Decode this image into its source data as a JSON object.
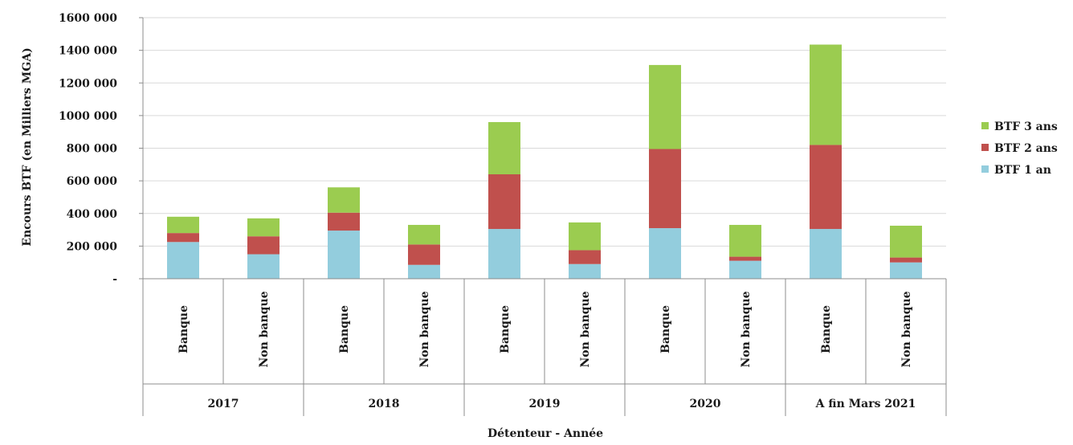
{
  "chart_data": {
    "type": "bar",
    "stacked": true,
    "title": "",
    "xlabel": "Détenteur - Année",
    "ylabel": "Encours BTF (en Milliers MGA)",
    "ylim": [
      0,
      1600000
    ],
    "yticks": [
      {
        "value": 0,
        "label": "-"
      },
      {
        "value": 200000,
        "label": "200 000"
      },
      {
        "value": 400000,
        "label": "400 000"
      },
      {
        "value": 600000,
        "label": "600 000"
      },
      {
        "value": 800000,
        "label": "800 000"
      },
      {
        "value": 1000000,
        "label": "1000 000"
      },
      {
        "value": 1200000,
        "label": "1200 000"
      },
      {
        "value": 1400000,
        "label": "1400 000"
      },
      {
        "value": 1600000,
        "label": "1600 000"
      }
    ],
    "grid": true,
    "legend_position": "right",
    "groups": [
      "2017",
      "2018",
      "2019",
      "2020",
      "A fin Mars 2021"
    ],
    "categories": [
      "Banque",
      "Non banque",
      "Banque",
      "Non banque",
      "Banque",
      "Non banque",
      "Banque",
      "Non banque",
      "Banque",
      "Non banque"
    ],
    "series": [
      {
        "name": "BTF 1 an",
        "color": "#93cddd",
        "values": [
          225000,
          150000,
          295000,
          85000,
          305000,
          90000,
          310000,
          110000,
          305000,
          100000
        ]
      },
      {
        "name": "BTF 2 ans",
        "color": "#c0504d",
        "values": [
          55000,
          110000,
          110000,
          125000,
          335000,
          85000,
          485000,
          25000,
          515000,
          30000
        ]
      },
      {
        "name": "BTF 3 ans",
        "color": "#9bcc50",
        "values": [
          100000,
          110000,
          155000,
          120000,
          320000,
          170000,
          515000,
          195000,
          615000,
          195000
        ]
      }
    ],
    "legend_order": [
      "BTF 3 ans",
      "BTF 2 ans",
      "BTF 1 an"
    ]
  }
}
